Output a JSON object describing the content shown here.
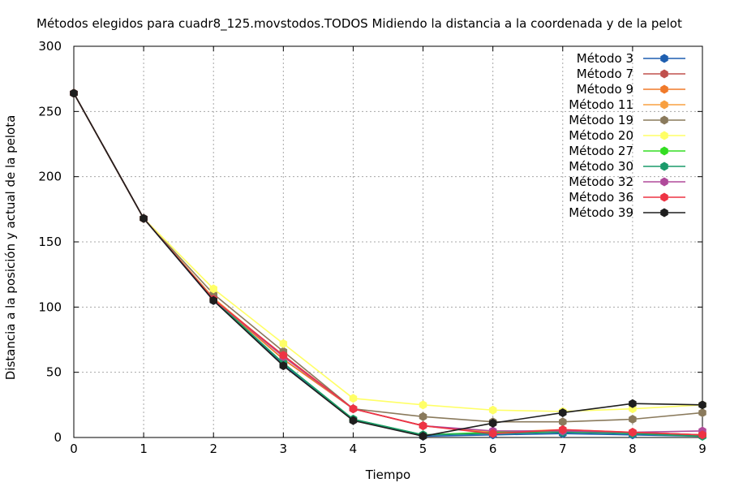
{
  "chart_data": {
    "type": "line",
    "title": "Métodos elegidos para cuadr8_125.movstodos.TODOS Midiendo la distancia a la coordenada y de la pelot",
    "xlabel": "Tiempo",
    "ylabel": "Distancia a la posición y actual de la pelota",
    "xlim": [
      0,
      9
    ],
    "ylim": [
      0,
      300
    ],
    "xticks": [
      "0",
      "1",
      "2",
      "3",
      "4",
      "5",
      "6",
      "7",
      "8",
      "9"
    ],
    "yticks": [
      "0",
      "50",
      "100",
      "150",
      "200",
      "250",
      "300"
    ],
    "grid": true,
    "legend_position": "top-right",
    "x": [
      0,
      1,
      2,
      3,
      4,
      5,
      6,
      7,
      8,
      9
    ],
    "series": [
      {
        "name": "Método 3",
        "color": "#1f5fb0",
        "values": [
          264,
          168,
          105,
          56,
          14,
          1,
          2,
          3,
          2,
          1
        ]
      },
      {
        "name": "Método 7",
        "color": "#c0504d",
        "values": [
          264,
          168,
          106,
          60,
          22,
          9,
          4,
          5,
          4,
          2
        ]
      },
      {
        "name": "Método 9",
        "color": "#f07a2a",
        "values": [
          264,
          168,
          106,
          60,
          22,
          9,
          4,
          5,
          4,
          2
        ]
      },
      {
        "name": "Método 11",
        "color": "#f8a040",
        "values": [
          264,
          168,
          107,
          62,
          22,
          9,
          4,
          6,
          4,
          2
        ]
      },
      {
        "name": "Método 19",
        "color": "#8a7a5c",
        "values": [
          264,
          168,
          110,
          66,
          22,
          16,
          12,
          12,
          14,
          19
        ]
      },
      {
        "name": "Método 20",
        "color": "#ffff66",
        "values": [
          264,
          168,
          114,
          72,
          30,
          25,
          21,
          20,
          22,
          25
        ]
      },
      {
        "name": "Método 27",
        "color": "#33dd22",
        "values": [
          264,
          168,
          106,
          57,
          14,
          2,
          4,
          5,
          3,
          1
        ]
      },
      {
        "name": "Método 30",
        "color": "#1a9a6a",
        "values": [
          264,
          168,
          106,
          57,
          14,
          2,
          3,
          4,
          3,
          1
        ]
      },
      {
        "name": "Método 32",
        "color": "#b04a9a",
        "values": [
          264,
          168,
          106,
          62,
          22,
          9,
          5,
          5,
          4,
          5
        ]
      },
      {
        "name": "Método 36",
        "color": "#ee3344",
        "values": [
          264,
          168,
          106,
          63,
          22,
          9,
          3,
          6,
          4,
          2
        ]
      },
      {
        "name": "Método 39",
        "color": "#1e1e1e",
        "values": [
          264,
          168,
          105,
          55,
          13,
          1,
          11,
          19,
          26,
          25
        ]
      }
    ]
  }
}
